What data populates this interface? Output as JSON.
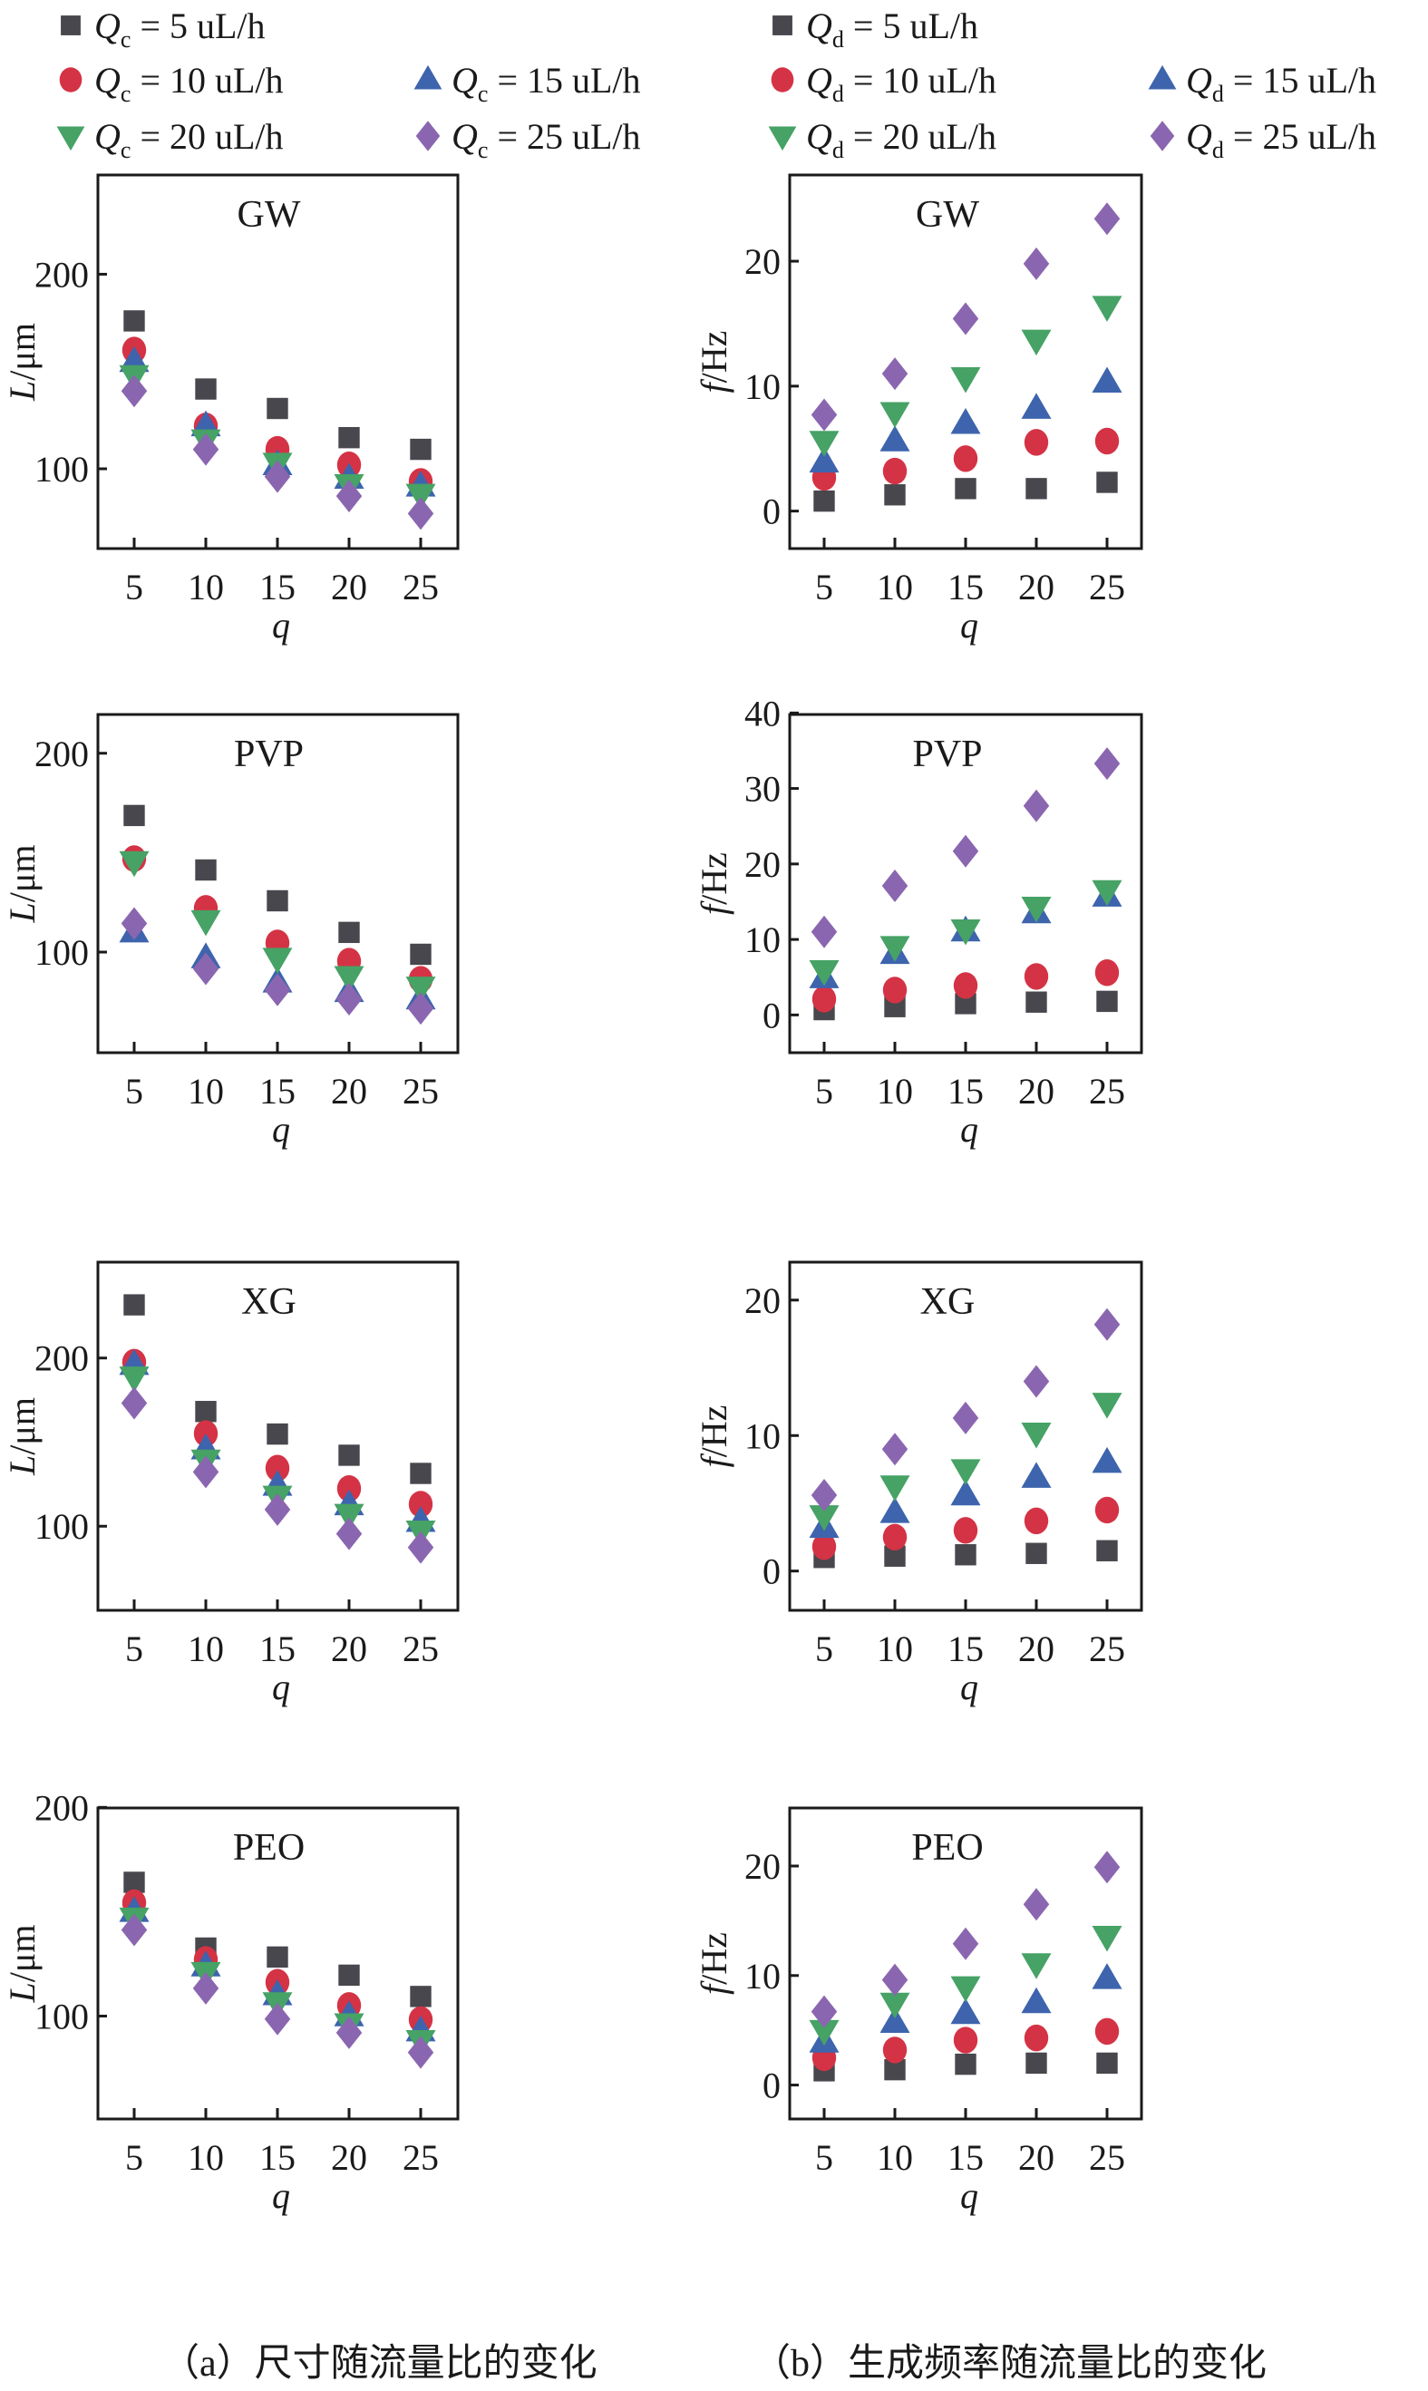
{
  "legend_left": {
    "symbol": "Q",
    "subscript": "c",
    "entries": [
      {
        "series": 0,
        "text": "= 5 uL/h"
      },
      {
        "series": 1,
        "text": "= 10 uL/h"
      },
      {
        "series": 2,
        "text": "= 15 uL/h"
      },
      {
        "series": 3,
        "text": "= 20 uL/h"
      },
      {
        "series": 4,
        "text": "= 25 uL/h"
      }
    ]
  },
  "legend_right": {
    "symbol": "Q",
    "subscript": "d",
    "entries": [
      {
        "series": 0,
        "text": "= 5 uL/h"
      },
      {
        "series": 1,
        "text": "= 10 uL/h"
      },
      {
        "series": 2,
        "text": "= 15 uL/h"
      },
      {
        "series": 3,
        "text": "= 20 uL/h"
      },
      {
        "series": 4,
        "text": "= 25 uL/h"
      }
    ]
  },
  "series_styles": [
    {
      "marker": "square",
      "color": "#47474d"
    },
    {
      "marker": "circle",
      "color": "#d43345"
    },
    {
      "marker": "triangle-up",
      "color": "#3d64ad"
    },
    {
      "marker": "triangle-down",
      "color": "#46a265"
    },
    {
      "marker": "diamond",
      "color": "#8b66b0"
    }
  ],
  "captions": {
    "left": "（a）尺寸随流量比的变化",
    "right": "（b）生成频率随流量比的变化"
  },
  "chart_data": [
    {
      "type": "scatter",
      "title": "GW",
      "column": "left",
      "xlabel": "q",
      "ylabel_var": "L",
      "ylabel_unit": "/μm",
      "x": [
        5,
        10,
        15,
        20,
        25
      ],
      "xticks": [
        5,
        10,
        15,
        20,
        25
      ],
      "yticks": [
        100,
        200
      ],
      "ylim": [
        59,
        251
      ],
      "series": [
        {
          "name": "Qc = 5 uL/h",
          "values": [
            176,
            141,
            131,
            116,
            110
          ]
        },
        {
          "name": "Qc = 10 uL/h",
          "values": [
            161,
            122,
            110,
            102,
            93.5
          ]
        },
        {
          "name": "Qc = 15 uL/h",
          "values": [
            155,
            122,
            102,
            95,
            91
          ]
        },
        {
          "name": "Qc = 20 uL/h",
          "values": [
            148,
            115,
            103,
            92,
            87
          ]
        },
        {
          "name": "Qc = 25 uL/h",
          "values": [
            140,
            110,
            96,
            86,
            77
          ]
        }
      ]
    },
    {
      "type": "scatter",
      "title": "GW",
      "column": "right",
      "xlabel": "q",
      "ylabel_var": "f",
      "ylabel_unit": "/Hz",
      "x": [
        5,
        10,
        15,
        20,
        25
      ],
      "xticks": [
        5,
        10,
        15,
        20,
        25
      ],
      "yticks": [
        0,
        10,
        20
      ],
      "ylim": [
        -3,
        26.9
      ],
      "series": [
        {
          "name": "Qd = 5 uL/h",
          "values": [
            0.8,
            1.3,
            1.8,
            1.8,
            2.3
          ]
        },
        {
          "name": "Qd = 10 uL/h",
          "values": [
            2.7,
            3.2,
            4.2,
            5.5,
            5.6
          ]
        },
        {
          "name": "Qd = 15 uL/h",
          "values": [
            3.9,
            5.6,
            7.0,
            8.2,
            10.3
          ]
        },
        {
          "name": "Qd = 20 uL/h",
          "values": [
            5.6,
            7.9,
            10.7,
            13.7,
            16.4
          ]
        },
        {
          "name": "Qd = 25 uL/h",
          "values": [
            7.7,
            11.0,
            15.4,
            19.8,
            23.4
          ]
        }
      ]
    },
    {
      "type": "scatter",
      "title": "PVP",
      "column": "left",
      "xlabel": "q",
      "ylabel_var": "L",
      "ylabel_unit": "/μm",
      "x": [
        5,
        10,
        15,
        20,
        25
      ],
      "xticks": [
        5,
        10,
        15,
        20,
        25
      ],
      "yticks": [
        100,
        200
      ],
      "ylim": [
        49.4,
        219.5
      ],
      "series": [
        {
          "name": "Qc = 5 uL/h",
          "values": [
            168.7,
            141.3,
            125.8,
            109.9,
            98.9
          ]
        },
        {
          "name": "Qc = 10 uL/h",
          "values": [
            147,
            122,
            104.6,
            95.4,
            86.3
          ]
        },
        {
          "name": "Qc = 15 uL/h",
          "values": [
            110,
            97,
            84.8,
            80,
            76.3
          ]
        },
        {
          "name": "Qc = 20 uL/h",
          "values": [
            145.6,
            115.9,
            97,
            87.8,
            82.5
          ]
        },
        {
          "name": "Qc = 25 uL/h",
          "values": [
            114.4,
            91.6,
            81,
            76.3,
            71.7
          ]
        }
      ]
    },
    {
      "type": "scatter",
      "title": "PVP",
      "column": "right",
      "xlabel": "q",
      "ylabel_var": "f",
      "ylabel_unit": "/Hz",
      "x": [
        5,
        10,
        15,
        20,
        25
      ],
      "xticks": [
        5,
        10,
        15,
        20,
        25
      ],
      "yticks": [
        0,
        10,
        20,
        30,
        40
      ],
      "ylim": [
        -5,
        39.8
      ],
      "series": [
        {
          "name": "Qd = 5 uL/h",
          "values": [
            0.7,
            1.1,
            1.5,
            1.7,
            1.8
          ]
        },
        {
          "name": "Qd = 10 uL/h",
          "values": [
            2.1,
            3.3,
            3.9,
            5.1,
            5.6
          ]
        },
        {
          "name": "Qd = 15 uL/h",
          "values": [
            4.9,
            8.1,
            11.1,
            13.5,
            15.7
          ]
        },
        {
          "name": "Qd = 20 uL/h",
          "values": [
            5.9,
            9.1,
            11.3,
            14.3,
            16.5
          ]
        },
        {
          "name": "Qd = 25 uL/h",
          "values": [
            11.0,
            17.1,
            21.7,
            27.7,
            33.3
          ]
        }
      ]
    },
    {
      "type": "scatter",
      "title": "XG",
      "column": "left",
      "xlabel": "q",
      "ylabel_var": "L",
      "ylabel_unit": "/μm",
      "x": [
        5,
        10,
        15,
        20,
        25
      ],
      "xticks": [
        5,
        10,
        15,
        20,
        25
      ],
      "yticks": [
        100,
        200
      ],
      "ylim": [
        50,
        257
      ],
      "series": [
        {
          "name": "Qc = 5 uL/h",
          "values": [
            231.6,
            168.2,
            154.8,
            142.2,
            131.4
          ]
        },
        {
          "name": "Qc = 10 uL/h",
          "values": [
            197.5,
            155.1,
            134.5,
            122.4,
            113.1
          ]
        },
        {
          "name": "Qc = 15 uL/h",
          "values": [
            196,
            145.8,
            124.2,
            112.6,
            102.7
          ]
        },
        {
          "name": "Qc = 20 uL/h",
          "values": [
            188.9,
            139.5,
            118,
            107.2,
            97.3
          ]
        },
        {
          "name": "Qc = 25 uL/h",
          "values": [
            173.2,
            132.3,
            109.9,
            95.5,
            87.4
          ]
        }
      ]
    },
    {
      "type": "scatter",
      "title": "XG",
      "column": "right",
      "xlabel": "q",
      "ylabel_var": "f",
      "ylabel_unit": "/Hz",
      "x": [
        5,
        10,
        15,
        20,
        25
      ],
      "xticks": [
        5,
        10,
        15,
        20,
        25
      ],
      "yticks": [
        0,
        10,
        20
      ],
      "ylim": [
        -2.9,
        22.8
      ],
      "series": [
        {
          "name": "Qd = 5 uL/h",
          "values": [
            1.0,
            1.1,
            1.2,
            1.3,
            1.5
          ]
        },
        {
          "name": "Qd = 10 uL/h",
          "values": [
            1.8,
            2.5,
            3.0,
            3.7,
            4.5
          ]
        },
        {
          "name": "Qd = 15 uL/h",
          "values": [
            3.2,
            4.3,
            5.6,
            6.9,
            8.0
          ]
        },
        {
          "name": "Qd = 20 uL/h",
          "values": [
            4.1,
            6.3,
            7.5,
            10.2,
            12.4
          ]
        },
        {
          "name": "Qd = 25 uL/h",
          "values": [
            5.6,
            9.0,
            11.3,
            14.0,
            18.2
          ]
        }
      ]
    },
    {
      "type": "scatter",
      "title": "PEO",
      "column": "left",
      "xlabel": "q",
      "ylabel_var": "L",
      "ylabel_unit": "/μm",
      "x": [
        5,
        10,
        15,
        20,
        25
      ],
      "xticks": [
        5,
        10,
        15,
        20,
        25
      ],
      "yticks": [
        100,
        200
      ],
      "ylim": [
        50.7,
        199.7
      ],
      "series": [
        {
          "name": "Qc = 5 uL/h",
          "values": [
            164.1,
            132.6,
            128.3,
            119.6,
            109.4
          ]
        },
        {
          "name": "Qc = 10 uL/h",
          "values": [
            154.3,
            127.1,
            116.2,
            105.1,
            98.3
          ]
        },
        {
          "name": "Qc = 15 uL/h",
          "values": [
            150,
            123.9,
            110.1,
            100,
            92.8
          ]
        },
        {
          "name": "Qc = 20 uL/h",
          "values": [
            147.1,
            121,
            106.5,
            96.4,
            88.4
          ]
        },
        {
          "name": "Qc = 25 uL/h",
          "values": [
            141.3,
            113.3,
            98.6,
            92,
            82.6
          ]
        }
      ]
    },
    {
      "type": "scatter",
      "title": "PEO",
      "column": "right",
      "xlabel": "q",
      "ylabel_var": "f",
      "ylabel_unit": "/Hz",
      "x": [
        5,
        10,
        15,
        20,
        25
      ],
      "xticks": [
        5,
        10,
        15,
        20,
        25
      ],
      "yticks": [
        0,
        10,
        20
      ],
      "ylim": [
        -3.1,
        25.3
      ],
      "series": [
        {
          "name": "Qd = 5 uL/h",
          "values": [
            1.3,
            1.4,
            1.9,
            2.0,
            2.0
          ]
        },
        {
          "name": "Qd = 10 uL/h",
          "values": [
            2.5,
            3.2,
            4.1,
            4.3,
            4.9
          ]
        },
        {
          "name": "Qd = 15 uL/h",
          "values": [
            3.9,
            5.7,
            6.5,
            7.5,
            9.7
          ]
        },
        {
          "name": "Qd = 20 uL/h",
          "values": [
            5.0,
            7.5,
            9.0,
            11.1,
            13.6
          ]
        },
        {
          "name": "Qd = 25 uL/h",
          "values": [
            6.7,
            9.6,
            12.9,
            16.5,
            19.9
          ]
        }
      ]
    }
  ]
}
